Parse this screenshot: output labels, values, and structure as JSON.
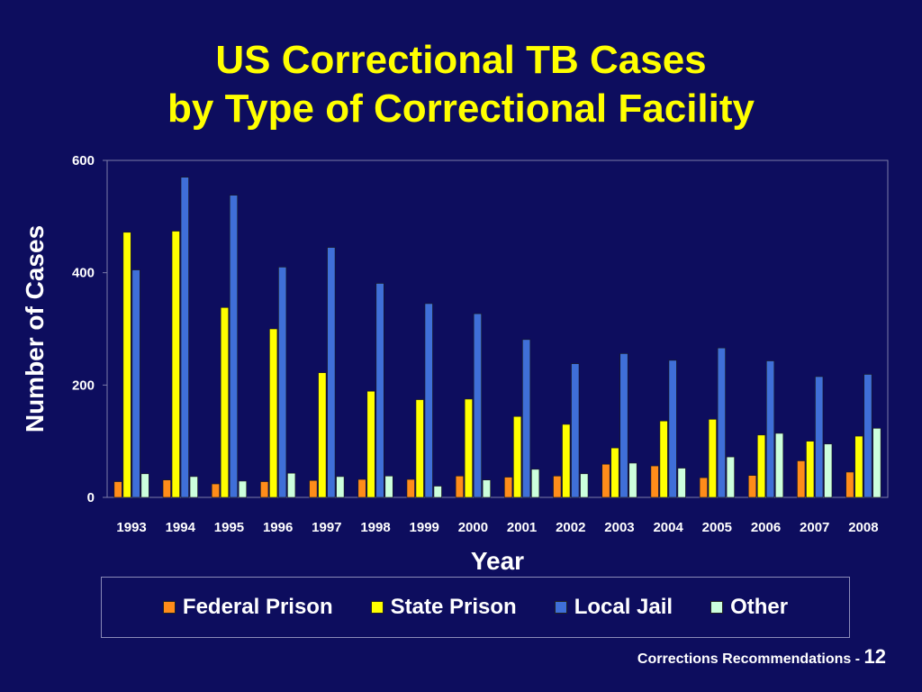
{
  "slide": {
    "title_line1": "US Correctional TB Cases",
    "title_line2": "by Type of Correctional Facility",
    "footer_text": "Corrections Recommendations - ",
    "page_number": "12"
  },
  "colors": {
    "background": "#0d0d5e",
    "title": "#ffff00",
    "text": "#ffffff",
    "grid": "#7a7aa8"
  },
  "chart_data": {
    "type": "bar",
    "title": "",
    "xlabel": "Year",
    "ylabel": "Number of Cases",
    "ylim": [
      0,
      600
    ],
    "yticks": [
      0,
      200,
      400,
      600
    ],
    "grid": false,
    "legend_position": "bottom",
    "categories": [
      "1993",
      "1994",
      "1995",
      "1996",
      "1997",
      "1998",
      "1999",
      "2000",
      "2001",
      "2002",
      "2003",
      "2004",
      "2005",
      "2006",
      "2007",
      "2008"
    ],
    "series": [
      {
        "name": "Federal Prison",
        "color": "#ff8c1a",
        "values": [
          28,
          31,
          24,
          28,
          30,
          32,
          32,
          38,
          36,
          38,
          59,
          56,
          35,
          39,
          65,
          45
        ]
      },
      {
        "name": "State Prison",
        "color": "#ffff00",
        "values": [
          472,
          474,
          338,
          300,
          222,
          189,
          174,
          175,
          144,
          130,
          88,
          136,
          139,
          111,
          100,
          109
        ]
      },
      {
        "name": "Local Jail",
        "color": "#3f6fd8",
        "values": [
          405,
          570,
          538,
          410,
          445,
          381,
          345,
          327,
          281,
          238,
          256,
          244,
          266,
          243,
          215,
          219
        ]
      },
      {
        "name": "Other",
        "color": "#ccffdd",
        "values": [
          42,
          37,
          29,
          43,
          37,
          38,
          20,
          31,
          50,
          42,
          61,
          52,
          72,
          114,
          95,
          123
        ]
      }
    ]
  }
}
